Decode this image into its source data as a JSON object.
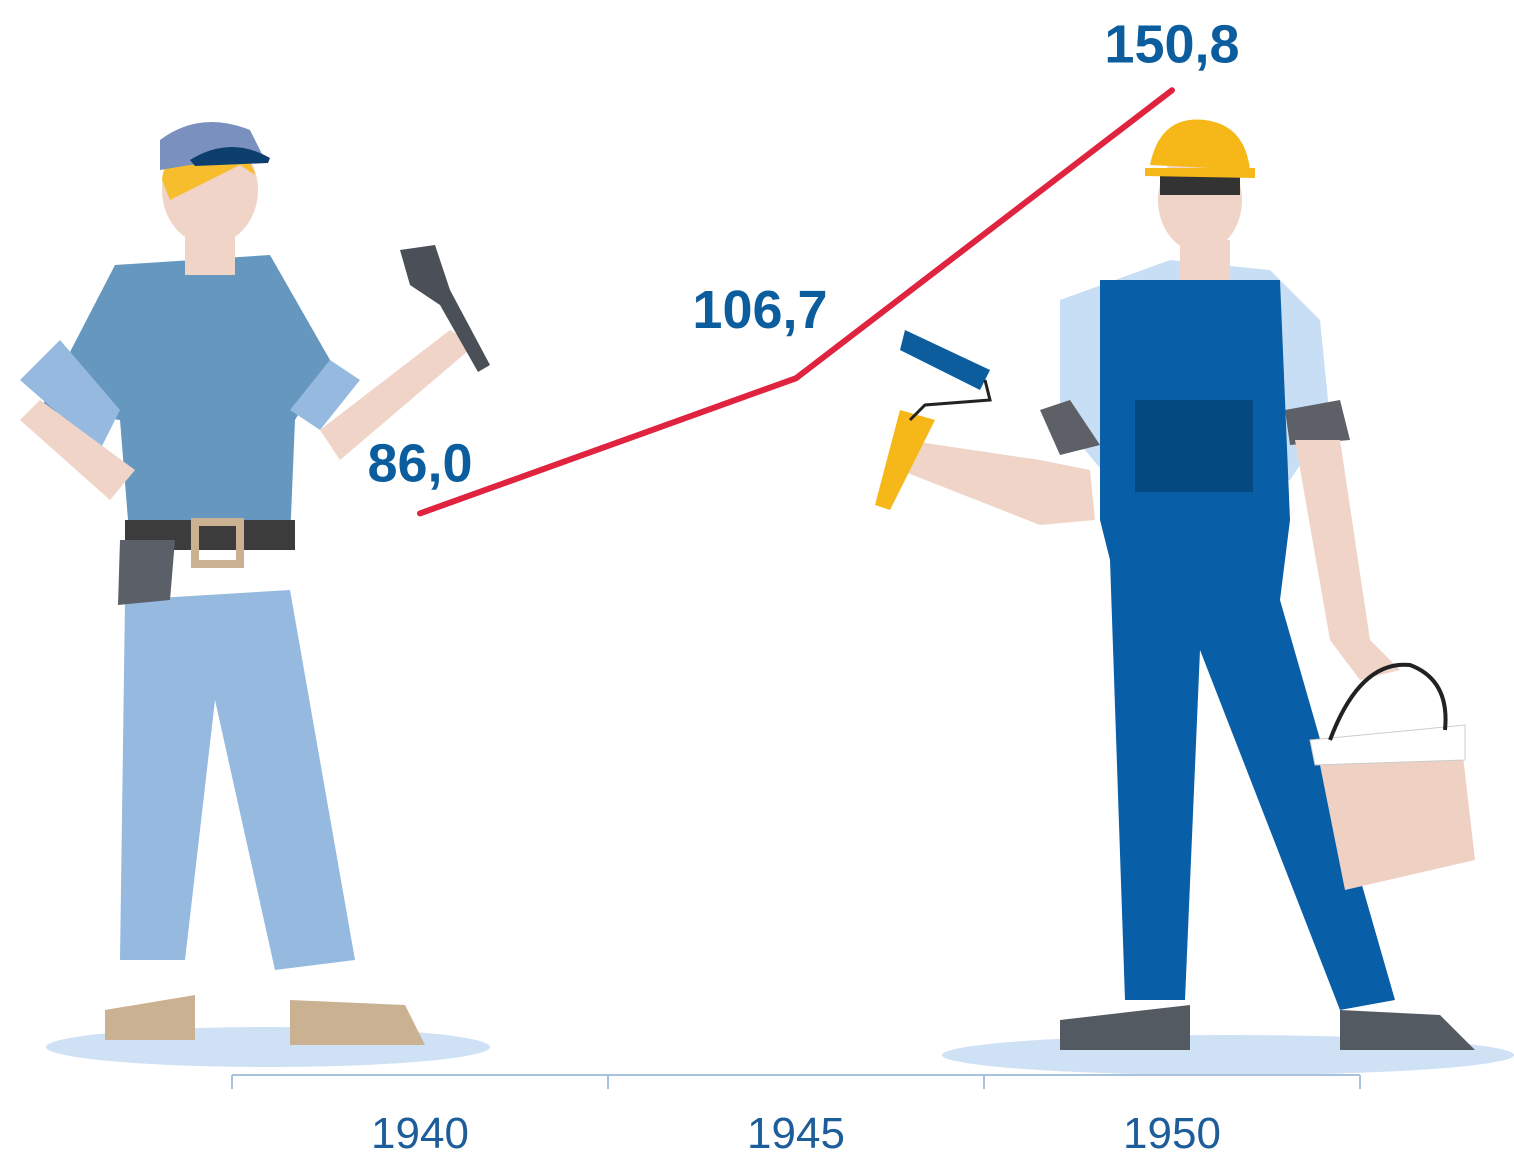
{
  "chart_data": {
    "type": "line",
    "categories": [
      "1940",
      "1945",
      "1950"
    ],
    "values": [
      86.0,
      106.7,
      150.8
    ],
    "value_labels": [
      "86,0",
      "106,7",
      "150,8"
    ],
    "color": "#e0233f"
  }
}
